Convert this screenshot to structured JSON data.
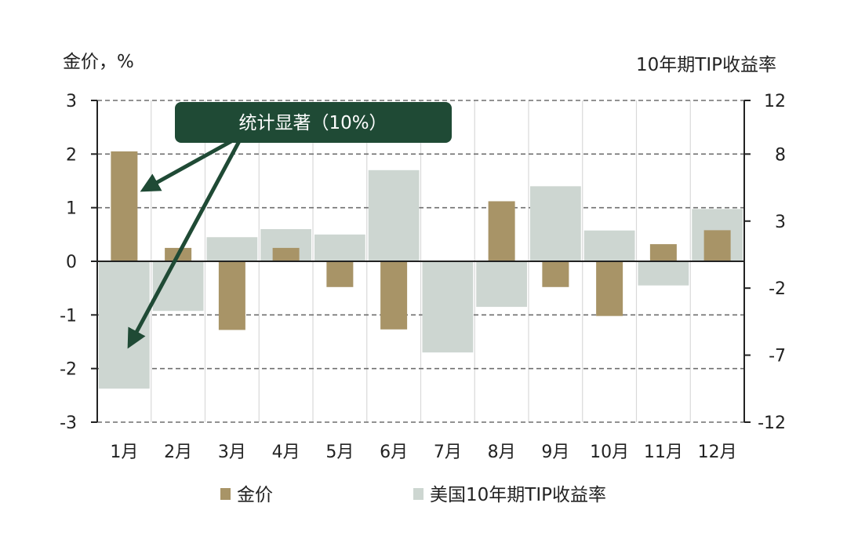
{
  "chart_data": {
    "type": "bar",
    "title": "",
    "y_left_label": "金价，%",
    "y_right_label": "10年期TIP收益率",
    "categories": [
      "1月",
      "2月",
      "3月",
      "4月",
      "5月",
      "6月",
      "7月",
      "8月",
      "9月",
      "10月",
      "11月",
      "12月"
    ],
    "y_left_ticks": [
      "3",
      "2",
      "1",
      "0",
      "-1",
      "-2",
      "-3"
    ],
    "y_right_ticks": [
      "12",
      "8",
      "3",
      "-2",
      "-7",
      "-12"
    ],
    "y_left_range": [
      -3,
      3
    ],
    "y_right_range": [
      -12,
      12
    ],
    "grid": "horizontal-dashed",
    "series": [
      {
        "name": "金价",
        "axis": "left",
        "color": "#a89467",
        "values": [
          2.05,
          0.25,
          -1.28,
          0.25,
          -0.48,
          -1.27,
          0.0,
          1.12,
          -0.48,
          -1.02,
          0.32,
          0.58
        ]
      },
      {
        "name": "美国10年期TIP收益率",
        "axis": "right",
        "color": "#cdd6d1",
        "values": [
          -9.5,
          -3.7,
          1.8,
          2.4,
          2.0,
          6.8,
          -6.8,
          -3.4,
          5.6,
          2.3,
          -1.8,
          3.9
        ]
      }
    ],
    "annotation": {
      "text": "统计显著（10%）",
      "color": "#1f4a35",
      "points_to": [
        "1月 金价",
        "1月 美国10年期TIP收益率"
      ]
    }
  }
}
